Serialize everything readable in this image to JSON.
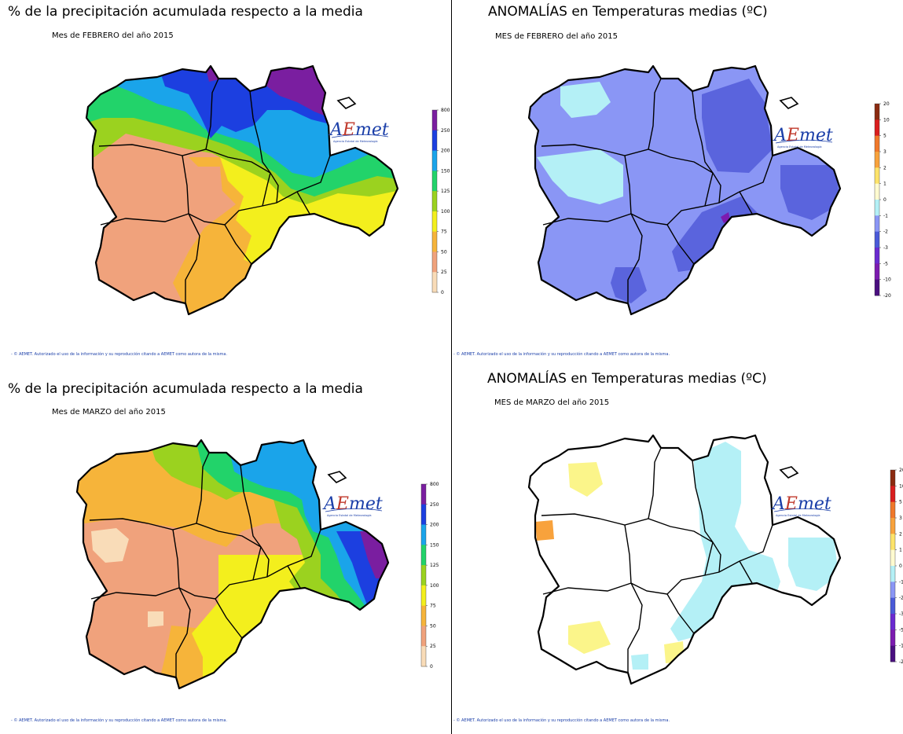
{
  "panels": {
    "top_left": {
      "title": "% de la precipitación acumulada respecto a la media",
      "subtitle": "Mes de FEBRERO del año 2015",
      "footer": "- © AEMET. Autorizado el uso de la información y su reproducción citando a AEMET como autora de la misma."
    },
    "top_right": {
      "title": "ANOMALÍAS en Temperaturas medias (ºC)",
      "subtitle": "MES de FEBRERO del año 2015",
      "footer": "- © AEMET. Autorizado el uso de la información y su reproducción citando a AEMET como autora de la misma."
    },
    "bottom_left": {
      "title": "% de la precipitación acumulada respecto a la media",
      "subtitle": "Mes de MARZO del año 2015",
      "footer": "- © AEMET. Autorizado el uso de la información y su reproducción citando a AEMET como autora de la misma."
    },
    "bottom_right": {
      "title": "ANOMALÍAS en Temperaturas medias (ºC)",
      "subtitle": "MES de MARZO del año 2015",
      "footer": "- © AEMET. Autorizado el uso de la información y su reproducción citando a AEMET como autora de la misma."
    }
  },
  "logo": {
    "text_a": "A",
    "text_rest": "Emet",
    "subtext": "Agencia Estatal de Meteorología",
    "colors": {
      "a": "#1a3ea8",
      "e": "#c0392b",
      "met": "#1a3ea8"
    }
  },
  "legends": {
    "precipitation": {
      "labels": [
        "800",
        "250",
        "200",
        "150",
        "125",
        "100",
        "75",
        "50",
        "25",
        "0"
      ],
      "colors": [
        "#7a1ea0",
        "#1c3fe0",
        "#1aa4ea",
        "#22d36a",
        "#9bd21f",
        "#f3ef1d",
        "#f6b43a",
        "#f0a27c",
        "#f9dcb8"
      ]
    },
    "temperature": {
      "labels": [
        "20",
        "10",
        "5",
        "3",
        "2",
        "1",
        "0",
        "-1",
        "-2",
        "-3",
        "-5",
        "-10",
        "-20"
      ],
      "colors": [
        "#8b2a10",
        "#d91e1e",
        "#f0782a",
        "#f8a23c",
        "#fde36a",
        "#fffbd0",
        "#b4f0f6",
        "#8a96f5",
        "#4a5ad8",
        "#6a2ad0",
        "#7c1bb0",
        "#4a0f80"
      ]
    }
  },
  "map_colors": {
    "purple": "#7a1ea0",
    "blue": "#1c3fe0",
    "sky": "#1aa4ea",
    "green": "#22d36a",
    "lime": "#9bd21f",
    "yellow": "#f3ef1d",
    "orange": "#f6b43a",
    "salmon": "#f0a27c",
    "cream": "#f9dcb8",
    "anom_mid": "#8a96f5",
    "anom_dark": "#5a64dd",
    "anom_violet": "#7c1bb0",
    "anom_light": "#b4f0f6",
    "anom_white": "#ffffff",
    "anom_yellow": "#fbf58a",
    "anom_orange": "#f8a23c",
    "border": "#000000"
  }
}
